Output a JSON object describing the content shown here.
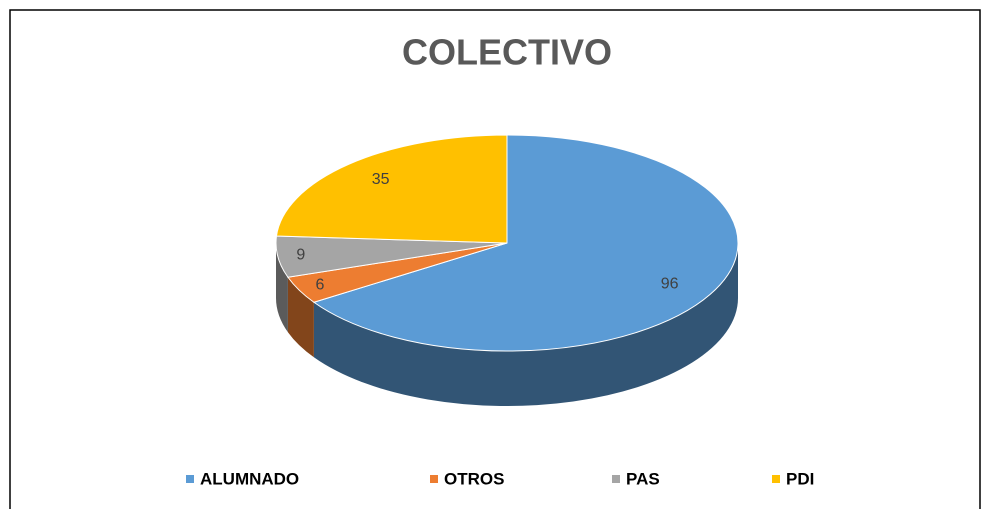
{
  "chart_data": {
    "type": "pie",
    "title": "COLECTIVO",
    "categories": [
      "ALUMNADO",
      "OTROS",
      "PAS",
      "PDI"
    ],
    "values": [
      96,
      6,
      9,
      35
    ],
    "colors": [
      "#5b9bd5",
      "#ed7d31",
      "#a5a5a5",
      "#ffc000"
    ],
    "legend": "bottom"
  }
}
